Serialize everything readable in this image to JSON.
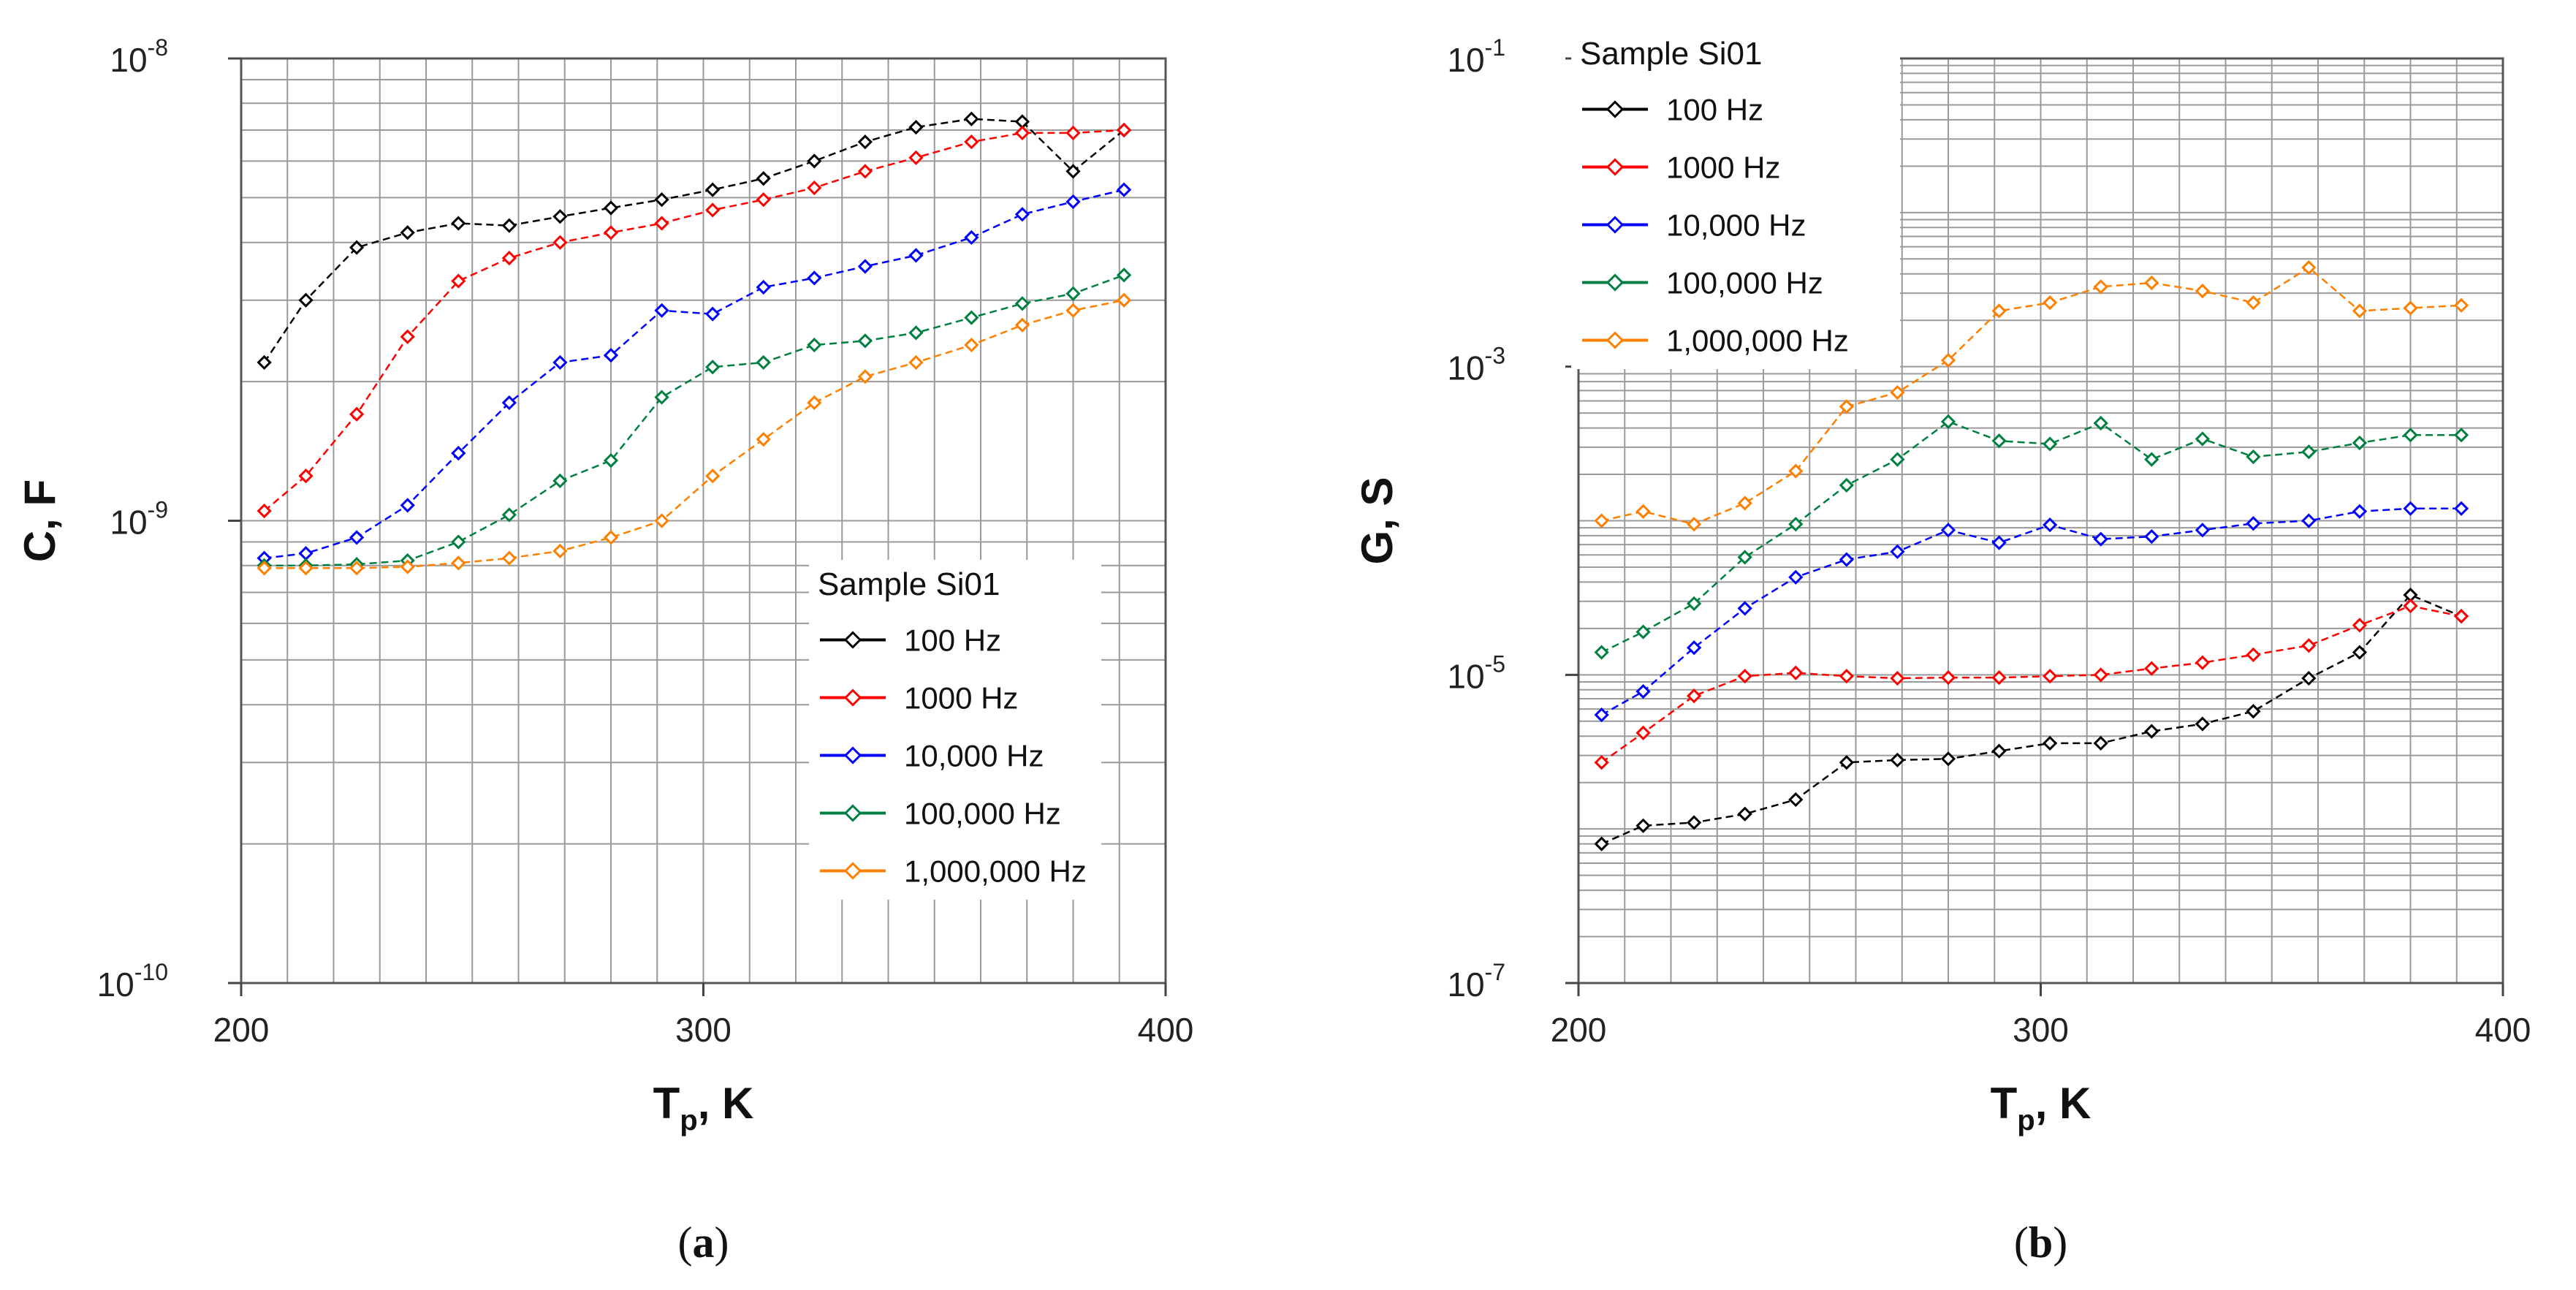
{
  "chart_data": [
    {
      "type": "line",
      "panel_label": "(a)",
      "panel_letter": "a",
      "ylabel": "C, F",
      "xlabel_main": "T",
      "xlabel_sub": "p",
      "xlabel_tail": ", K",
      "xlim": [
        200,
        400
      ],
      "ylim": [
        1e-10,
        1e-08
      ],
      "yscale": "log",
      "xticks": [
        "200",
        "300",
        "400"
      ],
      "yticks": [
        {
          "value": 1e-10,
          "base": "10",
          "exp": "-10"
        },
        {
          "value": 1e-09,
          "base": "10",
          "exp": "-9"
        },
        {
          "value": 1e-08,
          "base": "10",
          "exp": "-8"
        }
      ],
      "grid": true,
      "legend": {
        "title": "Sample Si01",
        "position": "lower-right"
      },
      "x": [
        205,
        214,
        225,
        236,
        247,
        258,
        269,
        280,
        291,
        302,
        313,
        324,
        335,
        346,
        358,
        369,
        380,
        391
      ],
      "series": [
        {
          "name": "100 Hz",
          "color": "#000000",
          "values": [
            2.2e-09,
            3e-09,
            3.9e-09,
            4.2e-09,
            4.4e-09,
            4.35e-09,
            4.55e-09,
            4.75e-09,
            4.95e-09,
            5.2e-09,
            5.5e-09,
            6e-09,
            6.6e-09,
            7.1e-09,
            7.4e-09,
            7.3e-09,
            5.7e-09,
            7e-09
          ]
        },
        {
          "name": "1000 Hz",
          "color": "#ff0000",
          "values": [
            1.05e-09,
            1.25e-09,
            1.7e-09,
            2.5e-09,
            3.3e-09,
            3.7e-09,
            4e-09,
            4.2e-09,
            4.4e-09,
            4.7e-09,
            4.95e-09,
            5.25e-09,
            5.7e-09,
            6.1e-09,
            6.6e-09,
            6.9e-09,
            6.9e-09,
            7e-09
          ]
        },
        {
          "name": "10,000 Hz",
          "color": "#0000ff",
          "values": [
            8.3e-10,
            8.5e-10,
            9.2e-10,
            1.08e-09,
            1.4e-09,
            1.8e-09,
            2.2e-09,
            2.28e-09,
            2.85e-09,
            2.8e-09,
            3.2e-09,
            3.35e-09,
            3.55e-09,
            3.75e-09,
            4.1e-09,
            4.6e-09,
            4.9e-09,
            5.2e-09
          ]
        },
        {
          "name": "100,000 Hz",
          "color": "#008040",
          "values": [
            8e-10,
            8e-10,
            8.05e-10,
            8.2e-10,
            9e-10,
            1.03e-09,
            1.22e-09,
            1.35e-09,
            1.85e-09,
            2.15e-09,
            2.2e-09,
            2.4e-09,
            2.45e-09,
            2.55e-09,
            2.75e-09,
            2.95e-09,
            3.1e-09,
            3.4e-09
          ]
        },
        {
          "name": "1,000,000 Hz",
          "color": "#ff8000",
          "values": [
            7.9e-10,
            7.9e-10,
            7.9e-10,
            7.95e-10,
            8.1e-10,
            8.3e-10,
            8.6e-10,
            9.2e-10,
            1e-09,
            1.25e-09,
            1.5e-09,
            1.8e-09,
            2.05e-09,
            2.2e-09,
            2.4e-09,
            2.65e-09,
            2.85e-09,
            3e-09
          ]
        }
      ]
    },
    {
      "type": "line",
      "panel_label": "(b)",
      "panel_letter": "b",
      "ylabel": "G, S",
      "xlabel_main": "T",
      "xlabel_sub": "p",
      "xlabel_tail": ", K",
      "xlim": [
        200,
        400
      ],
      "ylim": [
        1e-07,
        0.1
      ],
      "yscale": "log",
      "xticks": [
        "200",
        "300",
        "400"
      ],
      "yticks": [
        {
          "value": 1e-07,
          "base": "10",
          "exp": "-7"
        },
        {
          "value": 1e-05,
          "base": "10",
          "exp": "-5"
        },
        {
          "value": 0.001,
          "base": "10",
          "exp": "-3"
        },
        {
          "value": 0.1,
          "base": "10",
          "exp": "-1"
        }
      ],
      "grid": true,
      "legend": {
        "title": "Sample Si01",
        "position": "upper-left"
      },
      "x": [
        205,
        214,
        225,
        236,
        247,
        258,
        269,
        280,
        291,
        302,
        313,
        324,
        335,
        346,
        358,
        369,
        380,
        391
      ],
      "series": [
        {
          "name": "100 Hz",
          "color": "#000000",
          "values": [
            8e-07,
            1.05e-06,
            1.1e-06,
            1.25e-06,
            1.55e-06,
            2.7e-06,
            2.8e-06,
            2.85e-06,
            3.2e-06,
            3.6e-06,
            3.6e-06,
            4.3e-06,
            4.8e-06,
            5.8e-06,
            9.5e-06,
            1.4e-05,
            3.3e-05,
            2.4e-05
          ]
        },
        {
          "name": "1000 Hz",
          "color": "#ff0000",
          "values": [
            2.7e-06,
            4.2e-06,
            7.3e-06,
            9.8e-06,
            1.03e-05,
            9.8e-06,
            9.5e-06,
            9.6e-06,
            9.6e-06,
            9.8e-06,
            1e-05,
            1.1e-05,
            1.2e-05,
            1.35e-05,
            1.55e-05,
            2.1e-05,
            2.8e-05,
            2.4e-05
          ]
        },
        {
          "name": "10,000 Hz",
          "color": "#0000ff",
          "values": [
            5.5e-06,
            7.8e-06,
            1.5e-05,
            2.7e-05,
            4.3e-05,
            5.6e-05,
            6.3e-05,
            8.7e-05,
            7.2e-05,
            9.4e-05,
            7.6e-05,
            7.9e-05,
            8.7e-05,
            9.6e-05,
            0.0001,
            0.000115,
            0.00012,
            0.00012
          ]
        },
        {
          "name": "100,000 Hz",
          "color": "#008040",
          "values": [
            1.4e-05,
            1.9e-05,
            2.9e-05,
            5.8e-05,
            9.5e-05,
            0.00017,
            0.00025,
            0.00044,
            0.00033,
            0.000315,
            0.00043,
            0.00025,
            0.00034,
            0.00026,
            0.00028,
            0.00032,
            0.00036,
            0.00036
          ]
        },
        {
          "name": "1,000,000 Hz",
          "color": "#ff8000",
          "values": [
            0.0001,
            0.000115,
            9.5e-05,
            0.00013,
            0.00021,
            0.00055,
            0.00068,
            0.0011,
            0.0023,
            0.0026,
            0.0033,
            0.0035,
            0.0031,
            0.0026,
            0.0044,
            0.0023,
            0.0024,
            0.0025
          ]
        }
      ]
    }
  ]
}
